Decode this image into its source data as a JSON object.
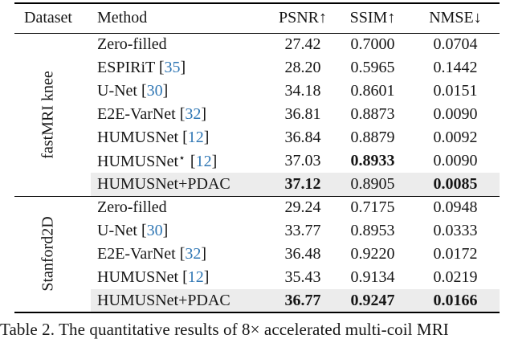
{
  "table": {
    "cite_open": "[",
    "cite_close": "]",
    "columns": {
      "dataset": "Dataset",
      "method": "Method",
      "psnr": "PSNR↑",
      "ssim": "SSIM↑",
      "nmse": "NMSE↓"
    },
    "groups": [
      {
        "dataset": "fastMRI knee",
        "rows": [
          {
            "method": "Zero-filled",
            "psnr": "27.42",
            "ssim": "0.7000",
            "nmse": "0.0704"
          },
          {
            "method": "ESPIRiT",
            "citation": "35",
            "psnr": "28.20",
            "ssim": "0.5965",
            "nmse": "0.1442"
          },
          {
            "method": "U-Net",
            "citation": "30",
            "psnr": "34.18",
            "ssim": "0.8601",
            "nmse": "0.0151"
          },
          {
            "method": "E2E-VarNet",
            "citation": "32",
            "psnr": "36.81",
            "ssim": "0.8873",
            "nmse": "0.0090"
          },
          {
            "method": "HUMUSNet",
            "citation": "12",
            "psnr": "36.84",
            "ssim": "0.8879",
            "nmse": "0.0092"
          },
          {
            "method": "HUMUSNet",
            "star": "⋆",
            "citation": "12",
            "psnr": "37.03",
            "ssim": "0.8933",
            "nmse": "0.0090"
          },
          {
            "method": "HUMUSNet+PDAC",
            "psnr": "37.12",
            "ssim": "0.8905",
            "nmse": "0.0085"
          }
        ]
      },
      {
        "dataset": "Stanford2D",
        "rows": [
          {
            "method": "Zero-filled",
            "psnr": "29.24",
            "ssim": "0.7175",
            "nmse": "0.0948"
          },
          {
            "method": "U-Net",
            "citation": "30",
            "psnr": "33.77",
            "ssim": "0.8953",
            "nmse": "0.0333"
          },
          {
            "method": "E2E-VarNet",
            "citation": "32",
            "psnr": "36.48",
            "ssim": "0.9220",
            "nmse": "0.0172"
          },
          {
            "method": "HUMUSNet",
            "citation": "12",
            "psnr": "35.43",
            "ssim": "0.9134",
            "nmse": "0.0219"
          },
          {
            "method": "HUMUSNet+PDAC",
            "psnr": "36.77",
            "ssim": "0.9247",
            "nmse": "0.0166"
          }
        ]
      }
    ]
  },
  "caption": "Table 2. The quantitative results of 8× accelerated multi-coil MRI",
  "colors": {
    "citation_link": "#3077b4",
    "row_highlight": "#ececec",
    "rule": "#000000"
  }
}
